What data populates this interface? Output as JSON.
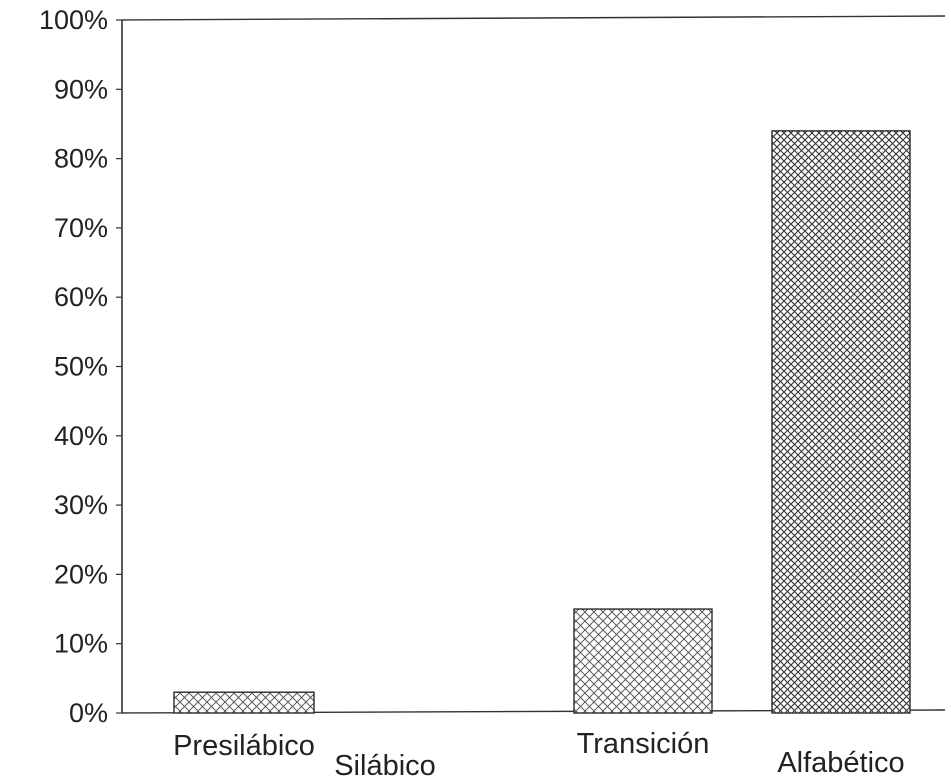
{
  "chart_data": {
    "type": "bar",
    "title": "",
    "xlabel": "",
    "ylabel": "",
    "categories": [
      "Presilábico",
      "Silábico",
      "Transición",
      "Alfabético"
    ],
    "values": [
      3,
      0,
      15,
      84
    ],
    "ylim": [
      0,
      100
    ],
    "yticks": [
      0,
      10,
      20,
      30,
      40,
      50,
      60,
      70,
      80,
      90,
      100
    ],
    "ytick_labels": [
      "0%",
      "10%",
      "20%",
      "30%",
      "40%",
      "50%",
      "60%",
      "70%",
      "80%",
      "90%",
      "100%"
    ],
    "grid": false,
    "legend": "none",
    "bar_fill": "crosshatch",
    "colors": {
      "axis": "#333333",
      "bar_outline": "#2a2a2a",
      "hatch": "#3a3a3a",
      "background": "#ffffff"
    }
  }
}
